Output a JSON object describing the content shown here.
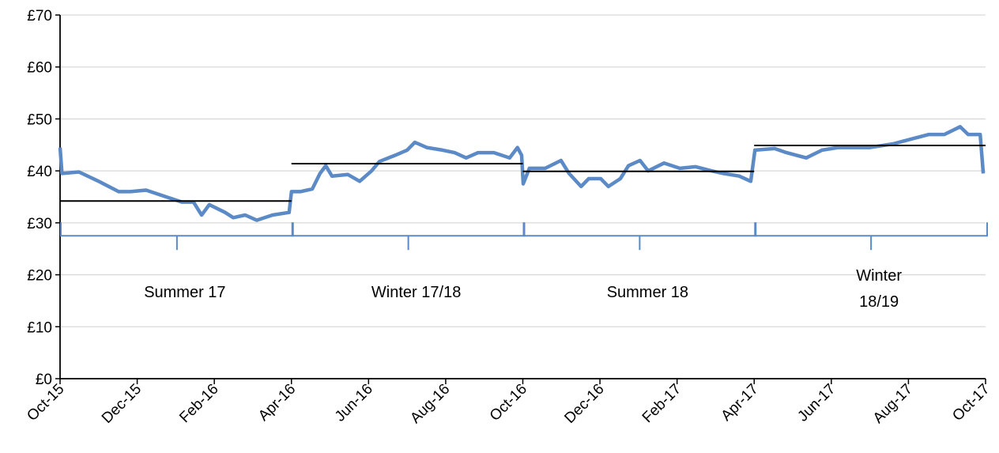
{
  "chart_data": {
    "type": "line",
    "x": [
      0,
      0.05,
      0.49,
      1.0,
      1.52,
      1.82,
      2.23,
      2.75,
      3.16,
      3.46,
      3.67,
      3.87,
      4.28,
      4.49,
      4.8,
      5.1,
      5.51,
      5.94,
      6.0,
      6.23,
      6.54,
      6.74,
      6.89,
      7.05,
      7.46,
      7.77,
      8.08,
      8.28,
      8.69,
      9.0,
      9.2,
      9.51,
      9.92,
      10.23,
      10.53,
      10.84,
      11.25,
      11.66,
      11.86,
      11.97,
      12.01,
      12.17,
      12.58,
      12.99,
      13.2,
      13.51,
      13.71,
      14.02,
      14.22,
      14.53,
      14.74,
      15.04,
      15.25,
      15.66,
      16.07,
      16.48,
      16.89,
      17.2,
      17.61,
      17.91,
      18.02,
      18.53,
      18.84,
      19.35,
      19.76,
      20.17,
      20.58,
      20.99,
      21.6,
      22.01,
      22.53,
      22.93,
      23.34,
      23.55,
      23.86,
      23.94
    ],
    "series": [
      {
        "color": "#5b8ac6",
        "values": [
          44.5,
          39.5,
          39.8,
          38.0,
          36.0,
          36.0,
          36.3,
          35.0,
          34.0,
          34.0,
          31.5,
          33.5,
          32.0,
          31.0,
          31.5,
          30.5,
          31.5,
          32.0,
          36.0,
          36.0,
          36.5,
          39.5,
          41.0,
          39.0,
          39.3,
          38.0,
          40.0,
          41.8,
          43.0,
          44.0,
          45.5,
          44.5,
          44.0,
          43.5,
          42.5,
          43.5,
          43.5,
          42.5,
          44.5,
          43.0,
          37.5,
          40.5,
          40.5,
          42.0,
          39.5,
          37.0,
          38.5,
          38.5,
          37.0,
          38.5,
          41.0,
          42.0,
          40.0,
          41.5,
          40.5,
          40.8,
          40.0,
          39.5,
          39.0,
          38.0,
          44.0,
          44.3,
          43.5,
          42.5,
          44.0,
          44.5,
          44.5,
          44.5,
          45.2,
          46.0,
          47.0,
          47.0,
          48.5,
          47.0,
          47.0,
          39.5
        ]
      }
    ],
    "periods": [
      {
        "label": [
          "Summer 17"
        ],
        "start": 0,
        "end": 6,
        "average": 34.2
      },
      {
        "label": [
          "Winter 17/18"
        ],
        "start": 6,
        "end": 12,
        "average": 41.4
      },
      {
        "label": [
          "Summer 18"
        ],
        "start": 12,
        "end": 18,
        "average": 39.9
      },
      {
        "label": [
          "Winter",
          "18/19"
        ],
        "start": 18,
        "end": 24,
        "average": 44.9
      }
    ],
    "xlim": [
      0,
      24
    ],
    "xticks": [
      {
        "value": 0,
        "label": "Oct-15"
      },
      {
        "value": 2,
        "label": "Dec-15"
      },
      {
        "value": 4,
        "label": "Feb-16"
      },
      {
        "value": 6,
        "label": "Apr-16"
      },
      {
        "value": 8,
        "label": "Jun-16"
      },
      {
        "value": 10,
        "label": "Aug-16"
      },
      {
        "value": 12,
        "label": "Oct-16"
      },
      {
        "value": 14,
        "label": "Dec-16"
      },
      {
        "value": 16,
        "label": "Feb-17"
      },
      {
        "value": 18,
        "label": "Apr-17"
      },
      {
        "value": 20,
        "label": "Jun-17"
      },
      {
        "value": 22,
        "label": "Aug-17"
      },
      {
        "value": 24,
        "label": "Oct-17"
      }
    ],
    "ylim": [
      0,
      70
    ],
    "yticks": [
      {
        "value": 0,
        "label": "£0"
      },
      {
        "value": 10,
        "label": "£10"
      },
      {
        "value": 20,
        "label": "£20"
      },
      {
        "value": 30,
        "label": "£30"
      },
      {
        "value": 40,
        "label": "£40"
      },
      {
        "value": 50,
        "label": "£50"
      },
      {
        "value": 60,
        "label": "£60"
      },
      {
        "value": 70,
        "label": "£70"
      }
    ],
    "grid": true
  }
}
